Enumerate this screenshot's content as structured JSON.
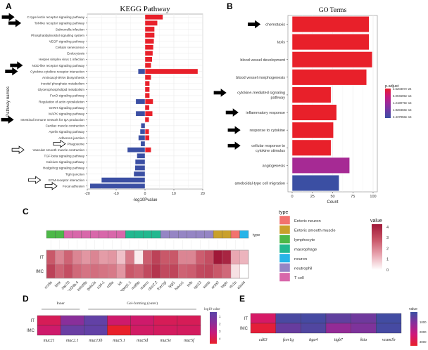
{
  "panels": {
    "A": "A",
    "B": "B",
    "C": "C",
    "D": "D",
    "E": "E"
  },
  "chart_data": [
    {
      "id": "A",
      "type": "bar",
      "orientation": "horizontal-diverging",
      "title": "KEGG Pathway",
      "xlabel": "-log10Pvalue",
      "ylabel": "Pathway names",
      "xlim": [
        -20,
        20
      ],
      "xticks": [
        "-20",
        "-10",
        "0",
        "10",
        "20"
      ],
      "grid": true,
      "categories": [
        "C-type lectin receptor signaling pathway",
        "Toll-like receptor signaling pathway",
        "Salmonella infection",
        "Phosphatidylinositol signaling system",
        "VEGF signaling pathway",
        "Cellular senescence",
        "Endocytosis",
        "Herpes simplex virus 1 infection",
        "NOD-like receptor signaling pathway",
        "Cytokine-cytokine receptor interaction",
        "Aminoacyl-tRNA biosynthesis",
        "Inositol phosphate metabolism",
        "Glycerophospholipid metabolism",
        "FoxO signaling pathway",
        "Regulation of actin cytoskeleton",
        "GnRH signaling pathway",
        "MAPK signaling pathway",
        "Intestinal immune network for IgA production",
        "Cardiac muscle contraction",
        "Apelin signaling pathway",
        "Adherens junction",
        "Phagosome",
        "Vascular smooth muscle contraction",
        "TGF-beta signaling pathway",
        "Calcium signaling pathway",
        "Hedgehog signaling pathway",
        "Tight junction",
        "ECM-receptor interaction",
        "Focal adhesion"
      ],
      "series": [
        {
          "name": "up",
          "color": "#e8202a",
          "values": [
            6.2,
            4.3,
            3.3,
            3.3,
            3.1,
            2.9,
            2.7,
            2.5,
            2.1,
            18.3,
            2.1,
            1.6,
            1.6,
            1.6,
            2.8,
            1.5,
            2.6,
            1.4,
            0,
            1.4,
            1.5,
            0,
            2.1,
            0,
            0,
            0,
            0,
            0,
            0
          ]
        },
        {
          "name": "down",
          "color": "#3b4fa3",
          "values": [
            0,
            0,
            0,
            0,
            0,
            0,
            0,
            0,
            0,
            -2.4,
            0,
            0,
            0,
            0,
            -3.2,
            0,
            -3.2,
            0,
            -1.4,
            -1.7,
            -2.3,
            -1.5,
            -6.1,
            -2.8,
            -3.4,
            -3.5,
            -3.9,
            -15.1,
            -19.1
          ]
        }
      ],
      "arrows": [
        {
          "category": "C-type lectin receptor signaling pathway",
          "style": "filled"
        },
        {
          "category": "Toll-like receptor signaling pathway",
          "style": "filled"
        },
        {
          "category": "NOD-like receptor signaling pathway",
          "style": "filled"
        },
        {
          "category": "Cytokine-cytokine receptor interaction",
          "style": "filled"
        },
        {
          "category": "Intestinal immune network for IgA production",
          "style": "filled"
        },
        {
          "category": "Phagosome",
          "style": "outline"
        },
        {
          "category": "Vascular smooth muscle contraction",
          "style": "outline"
        },
        {
          "category": "ECM-receptor interaction",
          "style": "outline"
        },
        {
          "category": "Focal adhesion",
          "style": "outline"
        }
      ]
    },
    {
      "id": "B",
      "type": "bar",
      "orientation": "horizontal",
      "title": "GO Terms",
      "xlabel": "Count",
      "ylabel": "",
      "xlim": [
        0,
        100
      ],
      "xticks": [
        "0",
        "25",
        "50",
        "75",
        "100"
      ],
      "grid": true,
      "categories": [
        "chemotaxis",
        "taxis",
        "blood vessel development",
        "blood vessel morphogenesis",
        "cytokine-mediated signaling pathway",
        "inflammatory response",
        "response to cytokine",
        "cellular response to cytokine stimulus",
        "angiogenesis",
        "ameboidal-type cell migration"
      ],
      "category_lines": [
        [
          "chemotaxis"
        ],
        [
          "taxis"
        ],
        [
          "blood vessel development"
        ],
        [
          "blood vessel morphogenesis"
        ],
        [
          "cytokine-mediated signaling",
          "pathway"
        ],
        [
          "inflammatory response"
        ],
        [
          "response to cytokine"
        ],
        [
          "cellular response to",
          "cytokine stimulus"
        ],
        [
          "angiogenesis"
        ],
        [
          "ameboidal-type cell migration"
        ]
      ],
      "values": [
        95,
        95,
        99,
        92,
        48,
        55,
        51,
        48,
        71,
        58
      ],
      "colors": [
        "#e8202a",
        "#e8202a",
        "#e8202a",
        "#e8202a",
        "#e8202a",
        "#e8202a",
        "#e8202a",
        "#e8202a",
        "#a62a94",
        "#3b4fa3"
      ],
      "arrows": [
        "chemotaxis",
        "cytokine-mediated signaling pathway",
        "inflammatory response",
        "response to cytokine",
        "cellular response to cytokine stimulus"
      ],
      "legend": {
        "title": "p.adjust",
        "placement": "right",
        "labels": [
          "2.520307e-24",
          "6.094695e-16",
          "1.218079e-15",
          "1.828468e-15",
          "2.437958e-15"
        ],
        "colors": [
          "#e8202a",
          "#c8197a",
          "#9a2a9a",
          "#6a3aa5",
          "#3b4fa3"
        ]
      }
    },
    {
      "id": "C",
      "type": "heatmap",
      "rows": [
        "IT",
        "IMC"
      ],
      "columns": [
        "ccr9a",
        "blnk",
        "zap70",
        "ccl34b.4",
        "tnfrsf9b",
        "gata2a",
        "cd4-1",
        "cd8a",
        "lck",
        "mpeg1.1",
        "mafbb",
        "marco",
        "ctsc2.2",
        "fcer1gl",
        "lygl1",
        "havcr1",
        "tnfb",
        "rgs13",
        "wasb",
        "acta2",
        "tagln",
        "rtn1b",
        "elavl4"
      ],
      "annotation_label": "type",
      "column_types": [
        "lymphocyte",
        "lymphocyte",
        "T cell",
        "T cell",
        "T cell",
        "T cell",
        "T cell",
        "T cell",
        "T cell",
        "macrophage",
        "macrophage",
        "macrophage",
        "macrophage",
        "neutrophil",
        "neutrophil",
        "neutrophil",
        "neutrophil",
        "neutrophil",
        "neutrophil",
        "Enteric smooth muscle",
        "Enteric smooth muscle",
        "Enteric neuron",
        "neuron"
      ],
      "values": [
        [
          2.8,
          2.0,
          2.6,
          2.0,
          1.7,
          2.0,
          1.6,
          1.7,
          1.0,
          2.2,
          0.3,
          2.7,
          3.3,
          2.8,
          2.8,
          2.0,
          2.0,
          2.7,
          3.0,
          4.4,
          4.0,
          1.4,
          1.2
        ],
        [
          3.3,
          2.6,
          3.0,
          2.5,
          2.3,
          2.4,
          2.3,
          2.2,
          1.7,
          2.8,
          2.6,
          3.1,
          3.6,
          3.1,
          3.2,
          2.6,
          2.7,
          3.1,
          3.2,
          2.8,
          2.5,
          0.5,
          0.0
        ]
      ],
      "legend_type": {
        "title": "type",
        "entries": [
          {
            "label": "Enteric neuron",
            "color": "#f2726e"
          },
          {
            "label": "Enteric smooth muscle",
            "color": "#c9a02b"
          },
          {
            "label": "lymphocyte",
            "color": "#4db848"
          },
          {
            "label": "macrophage",
            "color": "#22b88f"
          },
          {
            "label": "neuron",
            "color": "#27b4e8"
          },
          {
            "label": "neutrophil",
            "color": "#9585c4"
          },
          {
            "label": "T cell",
            "color": "#d867aa"
          }
        ]
      },
      "legend_value": {
        "title": "value",
        "ticks": [
          "4",
          "3",
          "2",
          "1",
          "0"
        ],
        "range": [
          0,
          4.3
        ],
        "low_color": "#ffffff",
        "high_color": "#a01838"
      }
    },
    {
      "id": "D",
      "type": "heatmap",
      "rows": [
        "IT",
        "IMC"
      ],
      "columns": [
        "muc21",
        "muc2.1",
        "muc13b",
        "muc5.1",
        "muc5d",
        "muc5e",
        "muc5f"
      ],
      "groups": [
        {
          "label": "Inner",
          "columns": [
            "muc21",
            "muc2.1"
          ]
        },
        {
          "label": "Gel-forming (outer)",
          "columns": [
            "muc13b",
            "muc5.1",
            "muc5d",
            "muc5e",
            "muc5f"
          ]
        }
      ],
      "values": [
        [
          1.2,
          3.0,
          4.0,
          1.5,
          1.5,
          1.2,
          1.2
        ],
        [
          1.5,
          3.8,
          4.0,
          0.5,
          1.4,
          1.3,
          1.3
        ]
      ],
      "legend": {
        "title": "log10 value",
        "ticks": [
          "1",
          "2",
          "3",
          "4"
        ],
        "range": [
          0.5,
          4.2
        ]
      }
    },
    {
      "id": "E",
      "type": "heatmap",
      "rows": [
        "IT",
        "IMC"
      ],
      "columns": [
        "cd63",
        "fcer1g",
        "itga4",
        "itgb7",
        "kita",
        "vcam1b"
      ],
      "values": [
        [
          2400,
          200,
          150,
          500,
          700,
          100
        ],
        [
          3000,
          600,
          300,
          1200,
          900,
          150
        ]
      ],
      "legend": {
        "title": "value",
        "ticks": [
          "1000",
          "2000",
          "3000"
        ],
        "range": [
          0,
          3200
        ]
      }
    }
  ]
}
